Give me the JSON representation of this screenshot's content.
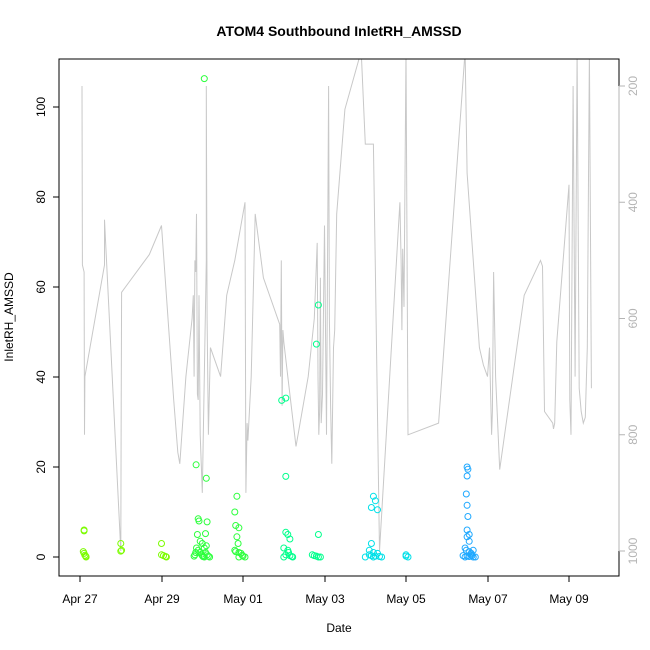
{
  "chart_data": {
    "type": "scatter",
    "title": "ATOM4 Southbound InletRH_AMSSD",
    "xlabel": "Date",
    "ylabel": "InletRH_AMSSD",
    "x_ticks": [
      "Apr 27",
      "Apr 29",
      "May 01",
      "May 03",
      "May 05",
      "May 07",
      "May 09"
    ],
    "xlim": [
      "Apr 26 18:00",
      "May 10 03:00"
    ],
    "ylim": [
      -2.5,
      110.5
    ],
    "y_ticks": [
      0,
      20,
      40,
      60,
      80,
      100
    ],
    "y2_ticks": [
      200,
      400,
      600,
      800,
      1000
    ],
    "y2lim": [
      1040,
      140
    ],
    "y2_reversed": true,
    "grid": false,
    "colors": {
      "trace": "#c8c8c8",
      "points_start": "#7cfc00",
      "points_mid": "#00ff7f",
      "points_end": "#1e90ff",
      "axis": "#000000",
      "right_axis": "#b4b4b4"
    },
    "secondary_trace_note": "pressure-like altitude trace on reversed right axis",
    "secondary_trace": [
      [
        0.05,
        200
      ],
      [
        0.06,
        508
      ],
      [
        0.1,
        520
      ],
      [
        0.11,
        800
      ],
      [
        0.12,
        700
      ],
      [
        0.6,
        508
      ],
      [
        0.6,
        430
      ],
      [
        1.0,
        1000
      ],
      [
        1.01,
        750
      ],
      [
        1.02,
        555
      ],
      [
        1.7,
        490
      ],
      [
        2.0,
        440
      ],
      [
        2.3,
        740
      ],
      [
        2.4,
        830
      ],
      [
        2.45,
        850
      ],
      [
        2.6,
        700
      ],
      [
        2.75,
        600
      ],
      [
        2.78,
        560
      ],
      [
        2.8,
        700
      ],
      [
        2.82,
        500
      ],
      [
        2.84,
        520
      ],
      [
        2.86,
        420
      ],
      [
        2.88,
        730
      ],
      [
        2.9,
        740
      ],
      [
        2.92,
        560
      ],
      [
        2.95,
        800
      ],
      [
        3.0,
        900
      ],
      [
        3.1,
        500
      ],
      [
        3.1,
        200
      ],
      [
        3.12,
        600
      ],
      [
        3.15,
        800
      ],
      [
        3.2,
        650
      ],
      [
        3.45,
        700
      ],
      [
        3.6,
        560
      ],
      [
        3.8,
        500
      ],
      [
        4.05,
        400
      ],
      [
        4.07,
        900
      ],
      [
        4.1,
        780
      ],
      [
        4.12,
        810
      ],
      [
        4.2,
        700
      ],
      [
        4.3,
        420
      ],
      [
        4.5,
        530
      ],
      [
        4.9,
        610
      ],
      [
        4.92,
        700
      ],
      [
        4.94,
        500
      ],
      [
        4.96,
        750
      ],
      [
        4.98,
        620
      ],
      [
        5.0,
        640
      ],
      [
        5.1,
        700
      ],
      [
        5.3,
        820
      ],
      [
        5.6,
        700
      ],
      [
        5.75,
        600
      ],
      [
        5.82,
        470
      ],
      [
        5.84,
        700
      ],
      [
        5.86,
        800
      ],
      [
        5.88,
        760
      ],
      [
        5.9,
        530
      ],
      [
        5.92,
        780
      ],
      [
        5.95,
        730
      ],
      [
        6.0,
        440
      ],
      [
        6.05,
        800
      ],
      [
        6.08,
        430
      ],
      [
        6.1,
        200
      ],
      [
        6.12,
        600
      ],
      [
        6.15,
        750
      ],
      [
        6.18,
        850
      ],
      [
        6.22,
        650
      ],
      [
        6.25,
        620
      ],
      [
        6.3,
        420
      ],
      [
        6.5,
        240
      ],
      [
        6.9,
        140
      ],
      [
        7.0,
        300
      ],
      [
        7.2,
        300
      ],
      [
        7.25,
        520
      ],
      [
        7.35,
        1000
      ],
      [
        7.85,
        400
      ],
      [
        7.88,
        500
      ],
      [
        7.9,
        620
      ],
      [
        7.92,
        480
      ],
      [
        7.95,
        580
      ],
      [
        8.0,
        140
      ],
      [
        8.05,
        800
      ],
      [
        8.8,
        780
      ],
      [
        9.45,
        140
      ],
      [
        9.5,
        350
      ],
      [
        9.8,
        650
      ],
      [
        9.9,
        680
      ],
      [
        10.0,
        700
      ],
      [
        10.05,
        650
      ],
      [
        10.1,
        800
      ],
      [
        10.12,
        760
      ],
      [
        10.15,
        520
      ],
      [
        10.2,
        700
      ],
      [
        10.3,
        860
      ],
      [
        10.9,
        560
      ],
      [
        11.3,
        500
      ],
      [
        11.35,
        510
      ],
      [
        11.4,
        760
      ],
      [
        11.6,
        780
      ],
      [
        11.62,
        790
      ],
      [
        11.65,
        780
      ],
      [
        11.7,
        640
      ],
      [
        12.0,
        370
      ],
      [
        12.02,
        740
      ],
      [
        12.05,
        800
      ],
      [
        12.1,
        200
      ],
      [
        12.15,
        700
      ],
      [
        12.2,
        140
      ],
      [
        12.25,
        720
      ],
      [
        12.3,
        760
      ],
      [
        12.35,
        780
      ],
      [
        12.4,
        770
      ],
      [
        12.45,
        650
      ],
      [
        12.5,
        140
      ],
      [
        12.55,
        720
      ]
    ],
    "series": [
      {
        "values": [
          [
            0.1,
            6.0
          ],
          [
            0.1,
            5.8
          ],
          [
            0.08,
            1.2
          ],
          [
            0.1,
            0.8
          ],
          [
            0.12,
            0.4
          ],
          [
            0.14,
            0.2
          ],
          [
            0.15,
            0.0
          ],
          [
            1.0,
            3.0
          ],
          [
            1.0,
            1.3
          ],
          [
            1.02,
            1.5
          ],
          [
            2.0,
            3.0
          ],
          [
            2.0,
            0.5
          ],
          [
            2.05,
            0.3
          ],
          [
            2.1,
            0.1
          ],
          [
            2.12,
            0.0
          ]
        ],
        "color_index": 0
      },
      {
        "values": [
          [
            2.85,
            20.5
          ],
          [
            2.9,
            8.5
          ],
          [
            2.92,
            8.0
          ],
          [
            2.88,
            5.0
          ],
          [
            2.95,
            3.5
          ],
          [
            3.0,
            3.0
          ],
          [
            2.86,
            2.0
          ],
          [
            2.9,
            1.5
          ],
          [
            2.95,
            1.0
          ],
          [
            2.98,
            0.6
          ],
          [
            3.0,
            0.3
          ],
          [
            3.02,
            0.1
          ],
          [
            3.05,
            0.0
          ],
          [
            2.82,
            0.5
          ],
          [
            2.84,
            1.0
          ],
          [
            2.8,
            0.2
          ],
          [
            3.05,
            106.3
          ],
          [
            3.1,
            17.5
          ],
          [
            3.12,
            7.8
          ],
          [
            3.08,
            5.2
          ],
          [
            3.1,
            2.5
          ],
          [
            3.05,
            2.0
          ],
          [
            3.08,
            1.0
          ],
          [
            3.12,
            0.5
          ],
          [
            3.15,
            0.2
          ],
          [
            3.18,
            0.0
          ],
          [
            3.02,
            0.1
          ],
          [
            3.85,
            13.5
          ],
          [
            3.8,
            10.0
          ],
          [
            3.82,
            7.0
          ],
          [
            3.9,
            6.5
          ],
          [
            3.85,
            4.5
          ],
          [
            3.88,
            3.0
          ],
          [
            3.8,
            1.5
          ],
          [
            3.82,
            1.2
          ],
          [
            3.9,
            1.0
          ],
          [
            3.95,
            0.8
          ],
          [
            3.98,
            0.4
          ],
          [
            4.0,
            0.2
          ],
          [
            3.9,
            0.0
          ],
          [
            4.05,
            0.0
          ]
        ],
        "color_index": 1
      },
      {
        "values": [
          [
            4.95,
            34.8
          ],
          [
            5.05,
            35.3
          ],
          [
            5.05,
            17.9
          ],
          [
            5.05,
            5.5
          ],
          [
            5.1,
            5.0
          ],
          [
            5.15,
            4.0
          ],
          [
            5.0,
            2.0
          ],
          [
            5.1,
            1.5
          ],
          [
            5.12,
            1.0
          ],
          [
            5.05,
            0.5
          ],
          [
            5.15,
            0.3
          ],
          [
            5.2,
            0.1
          ],
          [
            5.0,
            0.0
          ],
          [
            5.22,
            0.0
          ],
          [
            5.85,
            56.0
          ],
          [
            5.8,
            47.3
          ],
          [
            5.85,
            5.0
          ],
          [
            5.7,
            0.5
          ],
          [
            5.75,
            0.3
          ],
          [
            5.8,
            0.2
          ],
          [
            5.85,
            0.0
          ],
          [
            5.9,
            0.0
          ]
        ],
        "color_index": 2
      },
      {
        "values": [
          [
            7.2,
            13.5
          ],
          [
            7.25,
            12.5
          ],
          [
            7.15,
            11.0
          ],
          [
            7.3,
            10.5
          ],
          [
            7.15,
            3.0
          ],
          [
            7.1,
            1.5
          ],
          [
            7.2,
            1.0
          ],
          [
            7.3,
            0.8
          ],
          [
            7.1,
            0.5
          ],
          [
            7.15,
            0.3
          ],
          [
            7.25,
            0.2
          ],
          [
            7.35,
            0.1
          ],
          [
            7.0,
            0.0
          ],
          [
            7.2,
            0.0
          ],
          [
            7.4,
            0.0
          ],
          [
            8.0,
            0.5
          ],
          [
            8.05,
            0.0
          ],
          [
            8.0,
            0.2
          ]
        ],
        "color_index": 3
      },
      {
        "values": [
          [
            9.5,
            20.0
          ],
          [
            9.52,
            19.5
          ],
          [
            9.5,
            18.0
          ],
          [
            9.48,
            14.0
          ],
          [
            9.5,
            11.5
          ],
          [
            9.52,
            9.0
          ],
          [
            9.5,
            6.0
          ],
          [
            9.55,
            5.0
          ],
          [
            9.5,
            4.5
          ],
          [
            9.55,
            3.5
          ],
          [
            9.45,
            2.0
          ],
          [
            9.48,
            1.5
          ],
          [
            9.55,
            1.2
          ],
          [
            9.6,
            0.8
          ],
          [
            9.65,
            1.5
          ],
          [
            9.6,
            0.5
          ],
          [
            9.62,
            0.3
          ],
          [
            9.5,
            0.2
          ],
          [
            9.55,
            0.1
          ],
          [
            9.65,
            0.0
          ],
          [
            9.7,
            0.0
          ],
          [
            9.45,
            0.0
          ],
          [
            9.4,
            0.3
          ]
        ],
        "color_index": 4
      }
    ]
  }
}
